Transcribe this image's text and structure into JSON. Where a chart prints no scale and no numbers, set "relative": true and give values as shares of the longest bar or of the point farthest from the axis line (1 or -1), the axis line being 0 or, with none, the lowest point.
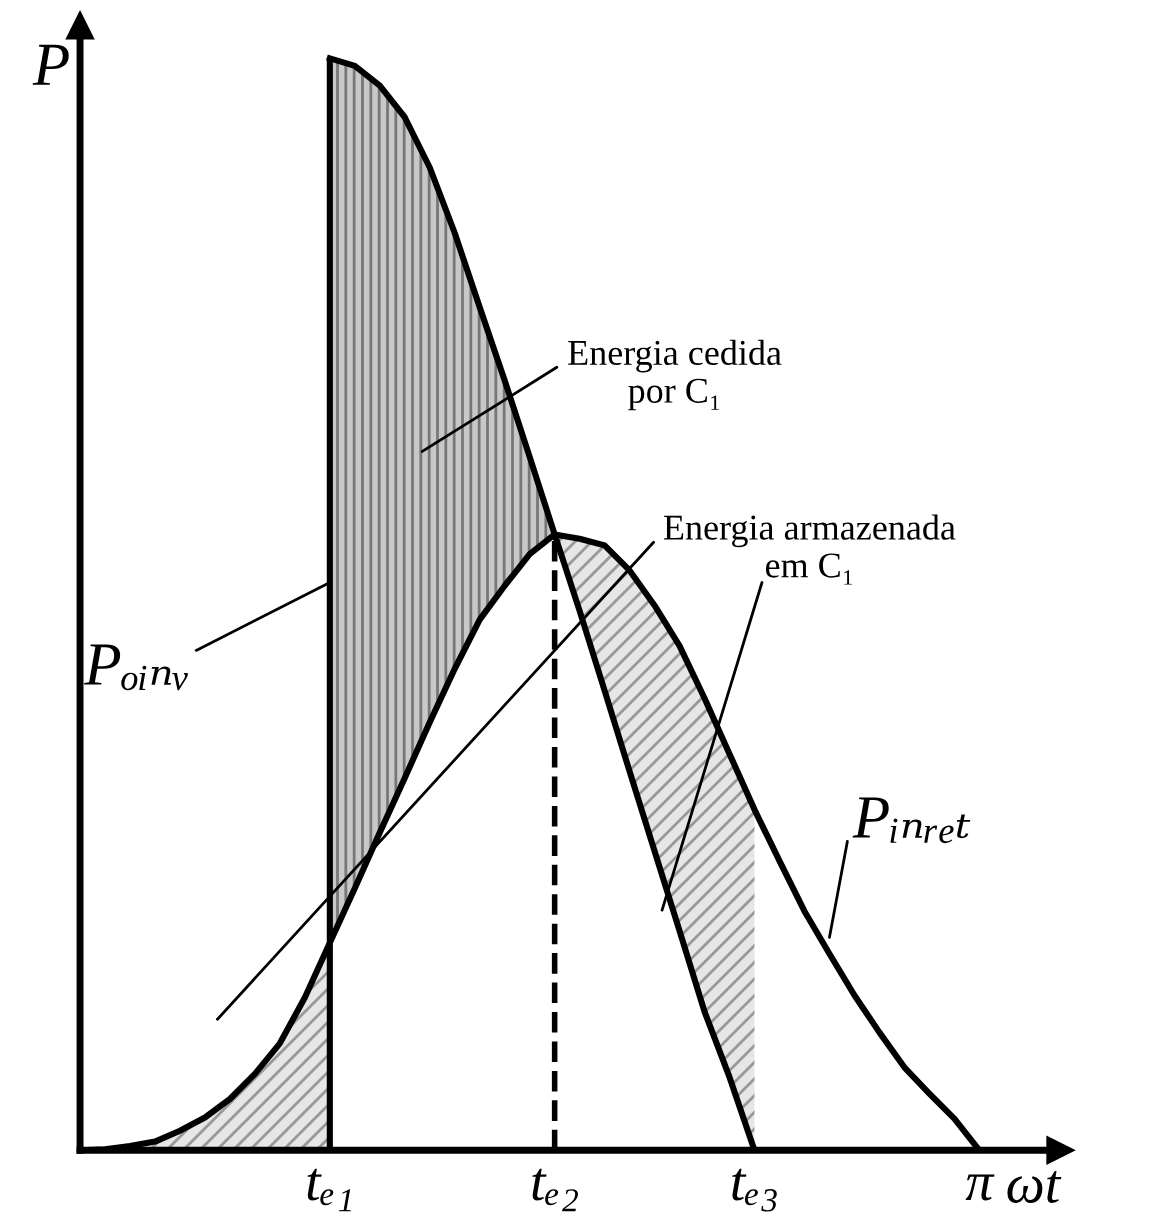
{
  "chart_data": {
    "type": "line",
    "relative": true,
    "xlabel": "ωt",
    "ylabel": "P",
    "categories": [
      null,
      null,
      null,
      null,
      null,
      null,
      null,
      null,
      null,
      null,
      null,
      null,
      null,
      null,
      null,
      null,
      null,
      null,
      null,
      null,
      null,
      null,
      null,
      null,
      null,
      null,
      null,
      null,
      null,
      null,
      null,
      null,
      null,
      null,
      null,
      null,
      null
    ],
    "series": [
      {
        "name": "Pₒᵢₙᵥ",
        "color": "#000000",
        "values": [
          null,
          null,
          null,
          null,
          null,
          null,
          null,
          null,
          null,
          null,
          1.0,
          0.993,
          0.975,
          0.946,
          0.9,
          0.84,
          0.772,
          0.705,
          0.635,
          0.564,
          0.494,
          0.421,
          0.347,
          0.274,
          0.201,
          0.127,
          0.067,
          0,
          null,
          null,
          null,
          null,
          null,
          null,
          null,
          null,
          null
        ]
      },
      {
        "name": "Pᵢₙᵣₑₜ",
        "color": "#000000",
        "values": [
          0,
          0.001,
          0.004,
          0.008,
          0.018,
          0.03,
          0.047,
          0.07,
          0.098,
          0.14,
          0.19,
          0.24,
          0.291,
          0.341,
          0.392,
          0.441,
          0.486,
          0.517,
          0.546,
          0.564,
          0.56,
          0.554,
          0.531,
          0.499,
          0.462,
          0.414,
          0.363,
          0.312,
          0.265,
          0.219,
          0.18,
          0.142,
          0.108,
          0.076,
          0.052,
          0.029,
          0
        ]
      }
    ],
    "annotations": [
      "Energia cedida\npor C₁",
      "Energia armazenada\nem C₁",
      "tₑ₁",
      "tₑ₂",
      "tₑ₃",
      "π"
    ],
    "legend": false,
    "marker": "none",
    "line_style": "solid"
  }
}
